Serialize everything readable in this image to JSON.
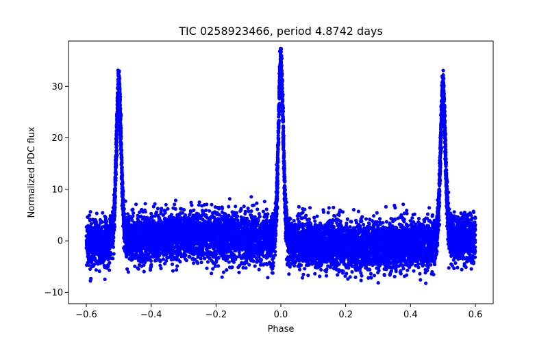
{
  "chart_data": {
    "type": "scatter",
    "title": "TIC 0258923466, period 4.8742 days",
    "xlabel": "Phase",
    "ylabel": "Normalized PDC flux",
    "xlim": [
      -0.655,
      0.655
    ],
    "ylim": [
      -12.2,
      38.8
    ],
    "xticks": [
      {
        "value": -0.6,
        "label": "−0.6"
      },
      {
        "value": -0.4,
        "label": "−0.4"
      },
      {
        "value": -0.2,
        "label": "−0.2"
      },
      {
        "value": 0.0,
        "label": "0.0"
      },
      {
        "value": 0.2,
        "label": "0.2"
      },
      {
        "value": 0.4,
        "label": "0.4"
      },
      {
        "value": 0.6,
        "label": "0.6"
      }
    ],
    "yticks": [
      {
        "value": -10,
        "label": "−10"
      },
      {
        "value": 0,
        "label": "0"
      },
      {
        "value": 10,
        "label": "10"
      },
      {
        "value": 20,
        "label": "20"
      },
      {
        "value": 30,
        "label": "30"
      }
    ],
    "grid": false,
    "marker_color": "#0000ff",
    "phase_range": [
      -0.6,
      0.6
    ],
    "baseline_flux": 0,
    "noise_band": [
      -7,
      7
    ],
    "peaks": [
      {
        "phase": -0.5,
        "max_flux": 32
      },
      {
        "phase": 0.0,
        "max_flux": 36.7
      },
      {
        "phase": 0.5,
        "max_flux": 32
      }
    ]
  }
}
